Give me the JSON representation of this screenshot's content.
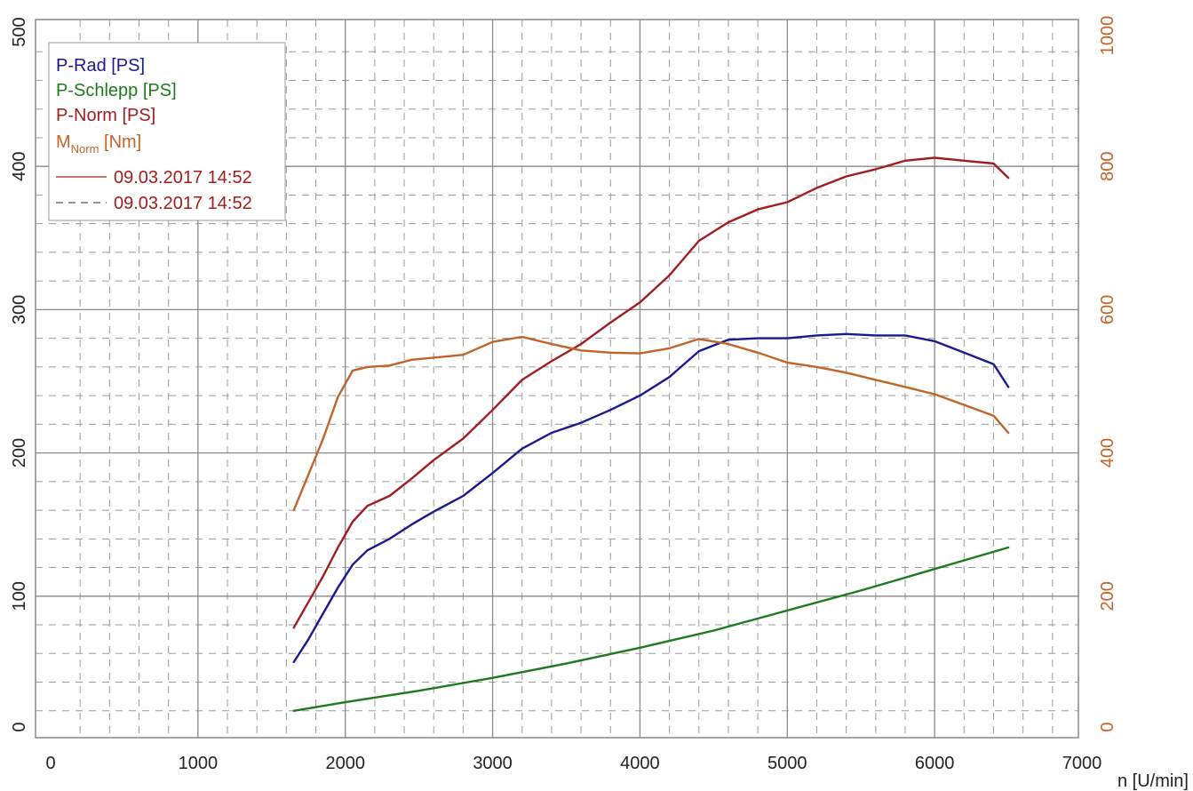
{
  "chart_data": {
    "type": "line",
    "xlabel": "n [U/min]",
    "x_ticks": [
      "0",
      "1000",
      "2000",
      "3000",
      "4000",
      "5000",
      "6000",
      "7000"
    ],
    "xlim": [
      0,
      7000
    ],
    "y_left_ticks": [
      "0",
      "100",
      "200",
      "300",
      "400",
      "500"
    ],
    "ylim_left": [
      0,
      500
    ],
    "y_right_ticks": [
      "0",
      "200",
      "400",
      "600",
      "800",
      "1000"
    ],
    "ylim_right": [
      0,
      1000
    ],
    "grid": true,
    "legend": {
      "position": "top-left",
      "entries": [
        {
          "parts": [
            "P-Rad [PS]"
          ],
          "color": "#1a1a8c"
        },
        {
          "parts": [
            "P-Schlepp [PS]"
          ],
          "color": "#1e7a1e"
        },
        {
          "parts": [
            "P-Norm [PS]"
          ],
          "color": "#a01e1e"
        },
        {
          "parts": [
            "M",
            "Norm",
            " [Nm]"
          ],
          "color": "#c0642a"
        }
      ],
      "line_entries": [
        {
          "style": "solid",
          "label": "09.03.2017 14:52"
        },
        {
          "style": "dashed",
          "label": "09.03.2017 14:52"
        }
      ]
    },
    "series": [
      {
        "name": "P-Rad [PS]",
        "axis": "left",
        "color": "#1a1a8c",
        "x": [
          1650,
          1750,
          1850,
          1950,
          2050,
          2150,
          2300,
          2450,
          2600,
          2800,
          3000,
          3200,
          3400,
          3600,
          3800,
          4000,
          4200,
          4400,
          4600,
          4800,
          5000,
          5200,
          5400,
          5600,
          5800,
          6000,
          6200,
          6400,
          6500
        ],
        "values": [
          54,
          70,
          88,
          106,
          122,
          132,
          140,
          150,
          159,
          170,
          186,
          203,
          214,
          221,
          230,
          240,
          253,
          271,
          279,
          280,
          280,
          282,
          283,
          282,
          282,
          278,
          270,
          262,
          246
        ]
      },
      {
        "name": "P-Schlepp [PS]",
        "axis": "left",
        "color": "#1e7a1e",
        "x": [
          1650,
          2000,
          2500,
          3000,
          3500,
          4000,
          4500,
          5000,
          5500,
          6000,
          6500
        ],
        "values": [
          20,
          26,
          34,
          43,
          53,
          64,
          76,
          90,
          104,
          119,
          134
        ]
      },
      {
        "name": "P-Norm [PS]",
        "axis": "left",
        "color": "#a01e1e",
        "x": [
          1650,
          1750,
          1850,
          1950,
          2050,
          2150,
          2300,
          2450,
          2600,
          2800,
          3000,
          3200,
          3400,
          3600,
          3800,
          4000,
          4200,
          4400,
          4600,
          4800,
          5000,
          5200,
          5400,
          5600,
          5800,
          6000,
          6200,
          6400,
          6500
        ],
        "values": [
          78,
          96,
          114,
          134,
          152,
          163,
          170,
          182,
          195,
          210,
          230,
          251,
          264,
          276,
          291,
          305,
          324,
          348,
          361,
          370,
          375,
          385,
          393,
          398,
          404,
          406,
          404,
          402,
          392
        ]
      },
      {
        "name": "M Norm [Nm]",
        "axis": "right",
        "color": "#c0642a",
        "x": [
          1650,
          1750,
          1850,
          1950,
          2050,
          2150,
          2300,
          2450,
          2600,
          2800,
          3000,
          3200,
          3400,
          3600,
          3800,
          4000,
          4200,
          4400,
          4600,
          4800,
          5000,
          5200,
          5400,
          5600,
          5800,
          6000,
          6200,
          6400,
          6500
        ],
        "values": [
          320,
          370,
          420,
          478,
          515,
          520,
          522,
          530,
          533,
          537,
          555,
          562,
          552,
          543,
          540,
          539,
          546,
          559,
          552,
          540,
          526,
          520,
          512,
          502,
          492,
          482,
          467,
          452,
          428
        ]
      }
    ]
  }
}
